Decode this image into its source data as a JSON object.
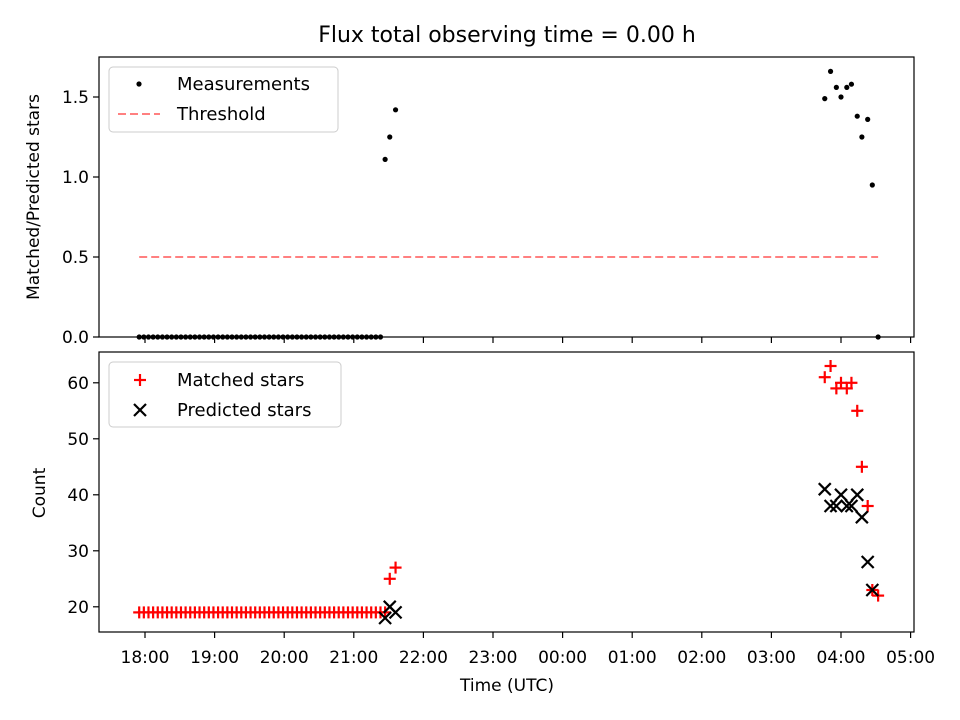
{
  "chart_data": [
    {
      "type": "scatter",
      "title": "Flux total observing time = 0.00 h",
      "ylabel": "Matched/Predicted stars",
      "xlabel": "",
      "ylim": [
        0.0,
        1.75
      ],
      "yticks": [
        0.0,
        0.5,
        1.0,
        1.5
      ],
      "ytick_labels": [
        "0.0",
        "0.5",
        "1.0",
        "1.5"
      ],
      "legend_position": "top-left",
      "series": [
        {
          "name": "Measurements",
          "marker": "dot",
          "color": "#000000",
          "points": [
            [
              "17:55",
              0
            ],
            [
              "17:59",
              0
            ],
            [
              "18:03",
              0
            ],
            [
              "18:07",
              0
            ],
            [
              "18:11",
              0
            ],
            [
              "18:15",
              0
            ],
            [
              "18:19",
              0
            ],
            [
              "18:23",
              0
            ],
            [
              "18:27",
              0
            ],
            [
              "18:31",
              0
            ],
            [
              "18:35",
              0
            ],
            [
              "18:39",
              0
            ],
            [
              "18:43",
              0
            ],
            [
              "18:47",
              0
            ],
            [
              "18:51",
              0
            ],
            [
              "18:55",
              0
            ],
            [
              "18:59",
              0
            ],
            [
              "19:03",
              0
            ],
            [
              "19:07",
              0
            ],
            [
              "19:11",
              0
            ],
            [
              "19:15",
              0
            ],
            [
              "19:19",
              0
            ],
            [
              "19:23",
              0
            ],
            [
              "19:27",
              0
            ],
            [
              "19:31",
              0
            ],
            [
              "19:35",
              0
            ],
            [
              "19:39",
              0
            ],
            [
              "19:43",
              0
            ],
            [
              "19:47",
              0
            ],
            [
              "19:51",
              0
            ],
            [
              "19:55",
              0
            ],
            [
              "19:59",
              0
            ],
            [
              "20:03",
              0
            ],
            [
              "20:07",
              0
            ],
            [
              "20:11",
              0
            ],
            [
              "20:15",
              0
            ],
            [
              "20:19",
              0
            ],
            [
              "20:23",
              0
            ],
            [
              "20:27",
              0
            ],
            [
              "20:31",
              0
            ],
            [
              "20:35",
              0
            ],
            [
              "20:39",
              0
            ],
            [
              "20:43",
              0
            ],
            [
              "20:47",
              0
            ],
            [
              "20:51",
              0
            ],
            [
              "20:55",
              0
            ],
            [
              "20:59",
              0
            ],
            [
              "21:03",
              0
            ],
            [
              "21:07",
              0
            ],
            [
              "21:11",
              0
            ],
            [
              "21:15",
              0
            ],
            [
              "21:19",
              0
            ],
            [
              "21:23",
              0
            ],
            [
              "21:27",
              1.11
            ],
            [
              "21:31",
              1.25
            ],
            [
              "21:36",
              1.42
            ],
            [
              "03:46",
              1.49
            ],
            [
              "03:51",
              1.66
            ],
            [
              "03:56",
              1.56
            ],
            [
              "04:00",
              1.5
            ],
            [
              "04:05",
              1.56
            ],
            [
              "04:09",
              1.58
            ],
            [
              "04:14",
              1.38
            ],
            [
              "04:18",
              1.25
            ],
            [
              "04:23",
              1.36
            ],
            [
              "04:27",
              0.95
            ],
            [
              "04:32",
              0
            ]
          ]
        },
        {
          "name": "Threshold",
          "marker": "dashed-line",
          "color": "#ff8080",
          "points": [
            [
              "17:55",
              0.5
            ],
            [
              "04:32",
              0.5
            ]
          ]
        }
      ]
    },
    {
      "type": "scatter",
      "title": "",
      "ylabel": "Count",
      "xlabel": "Time (UTC)",
      "ylim": [
        15.5,
        65.5
      ],
      "yticks": [
        20,
        30,
        40,
        50,
        60
      ],
      "ytick_labels": [
        "20",
        "30",
        "40",
        "50",
        "60"
      ],
      "xticks": [
        "18:00",
        "19:00",
        "20:00",
        "21:00",
        "22:00",
        "23:00",
        "00:00",
        "01:00",
        "02:00",
        "03:00",
        "04:00",
        "05:00"
      ],
      "legend_position": "top-left",
      "series": [
        {
          "name": "Matched stars",
          "marker": "plus",
          "color": "#ff0000",
          "points": [
            [
              "17:55",
              19
            ],
            [
              "17:59",
              19
            ],
            [
              "18:03",
              19
            ],
            [
              "18:07",
              19
            ],
            [
              "18:11",
              19
            ],
            [
              "18:15",
              19
            ],
            [
              "18:19",
              19
            ],
            [
              "18:23",
              19
            ],
            [
              "18:27",
              19
            ],
            [
              "18:31",
              19
            ],
            [
              "18:35",
              19
            ],
            [
              "18:39",
              19
            ],
            [
              "18:43",
              19
            ],
            [
              "18:47",
              19
            ],
            [
              "18:51",
              19
            ],
            [
              "18:55",
              19
            ],
            [
              "18:59",
              19
            ],
            [
              "19:03",
              19
            ],
            [
              "19:07",
              19
            ],
            [
              "19:11",
              19
            ],
            [
              "19:15",
              19
            ],
            [
              "19:19",
              19
            ],
            [
              "19:23",
              19
            ],
            [
              "19:27",
              19
            ],
            [
              "19:31",
              19
            ],
            [
              "19:35",
              19
            ],
            [
              "19:39",
              19
            ],
            [
              "19:43",
              19
            ],
            [
              "19:47",
              19
            ],
            [
              "19:51",
              19
            ],
            [
              "19:55",
              19
            ],
            [
              "19:59",
              19
            ],
            [
              "20:03",
              19
            ],
            [
              "20:07",
              19
            ],
            [
              "20:11",
              19
            ],
            [
              "20:15",
              19
            ],
            [
              "20:19",
              19
            ],
            [
              "20:23",
              19
            ],
            [
              "20:27",
              19
            ],
            [
              "20:31",
              19
            ],
            [
              "20:35",
              19
            ],
            [
              "20:39",
              19
            ],
            [
              "20:43",
              19
            ],
            [
              "20:47",
              19
            ],
            [
              "20:51",
              19
            ],
            [
              "20:55",
              19
            ],
            [
              "20:59",
              19
            ],
            [
              "21:03",
              19
            ],
            [
              "21:07",
              19
            ],
            [
              "21:11",
              19
            ],
            [
              "21:15",
              19
            ],
            [
              "21:19",
              19
            ],
            [
              "21:23",
              19
            ],
            [
              "21:27",
              19
            ],
            [
              "21:31",
              25
            ],
            [
              "21:36",
              27
            ],
            [
              "03:46",
              61
            ],
            [
              "03:51",
              63
            ],
            [
              "03:56",
              59
            ],
            [
              "04:00",
              60
            ],
            [
              "04:05",
              59
            ],
            [
              "04:09",
              60
            ],
            [
              "04:14",
              55
            ],
            [
              "04:18",
              45
            ],
            [
              "04:23",
              38
            ],
            [
              "04:27",
              23
            ],
            [
              "04:32",
              22
            ]
          ]
        },
        {
          "name": "Predicted stars",
          "marker": "x",
          "color": "#000000",
          "points": [
            [
              "21:27",
              18
            ],
            [
              "21:31",
              20
            ],
            [
              "21:36",
              19
            ],
            [
              "03:46",
              41
            ],
            [
              "03:51",
              38
            ],
            [
              "03:56",
              38
            ],
            [
              "04:00",
              40
            ],
            [
              "04:05",
              38
            ],
            [
              "04:09",
              38
            ],
            [
              "04:14",
              40
            ],
            [
              "04:18",
              36
            ],
            [
              "04:23",
              28
            ],
            [
              "04:27",
              23
            ]
          ]
        }
      ]
    }
  ]
}
